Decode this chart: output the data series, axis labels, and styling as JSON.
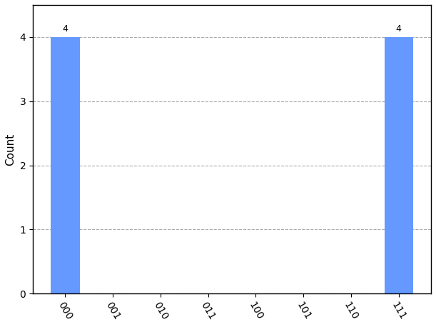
{
  "categories": [
    "000",
    "001",
    "010",
    "011",
    "100",
    "101",
    "110",
    "111"
  ],
  "values": [
    4,
    0,
    0,
    0,
    0,
    0,
    0,
    4
  ],
  "bar_color": "#6699ff",
  "ylabel": "Count",
  "ylim": [
    0,
    4.5
  ],
  "yticks": [
    0,
    1,
    2,
    3,
    4
  ],
  "bar_width": 0.6,
  "grid_color": "#aaaaaa",
  "grid_linestyle": "--",
  "annotation_fontsize": 9,
  "ylabel_fontsize": 11,
  "tick_fontsize": 10,
  "background_color": "#ffffff",
  "border_color": "#000000",
  "xticklabel_rotation": -60,
  "figsize": [
    6.11,
    4.58
  ],
  "dpi": 100
}
